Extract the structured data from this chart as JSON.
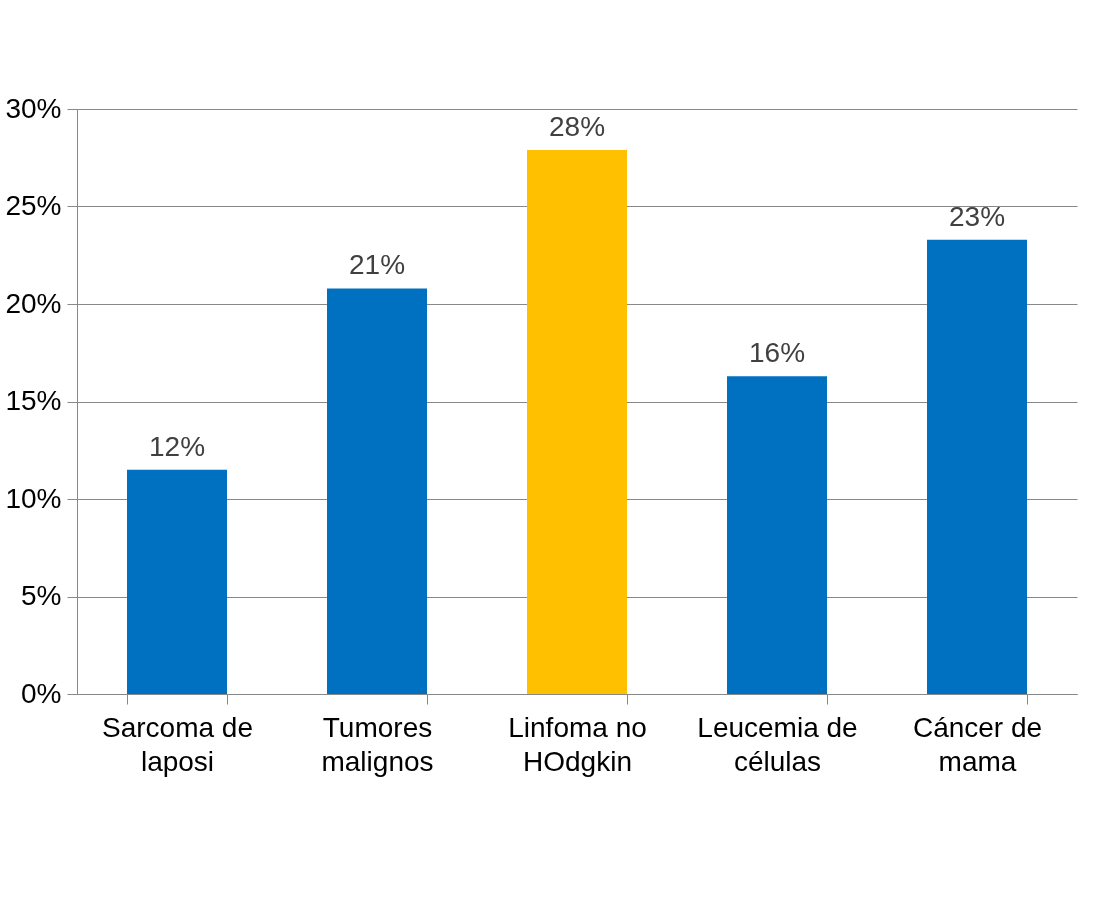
{
  "chart_data": {
    "type": "bar",
    "categories": [
      "Sarcoma de laposi",
      "Tumores malignos",
      "Linfoma no HOdgkin",
      "Leucemia de células",
      "Cáncer de mama"
    ],
    "values": [
      11.5,
      20.8,
      27.9,
      16.3,
      23.3
    ],
    "value_labels": [
      "12%",
      "21%",
      "28%",
      "16%",
      "23%"
    ],
    "colors": [
      "#0070c0",
      "#0070c0",
      "#ffc000",
      "#0070c0",
      "#0070c0"
    ],
    "ylim": [
      0,
      30
    ],
    "yticks": [
      {
        "value": 0,
        "label": "0%"
      },
      {
        "value": 5,
        "label": "5%"
      },
      {
        "value": 10,
        "label": "10%"
      },
      {
        "value": 15,
        "label": "15%"
      },
      {
        "value": 20,
        "label": "20%"
      },
      {
        "value": 25,
        "label": "25%"
      },
      {
        "value": 30,
        "label": "30%"
      }
    ],
    "grid": "y"
  }
}
